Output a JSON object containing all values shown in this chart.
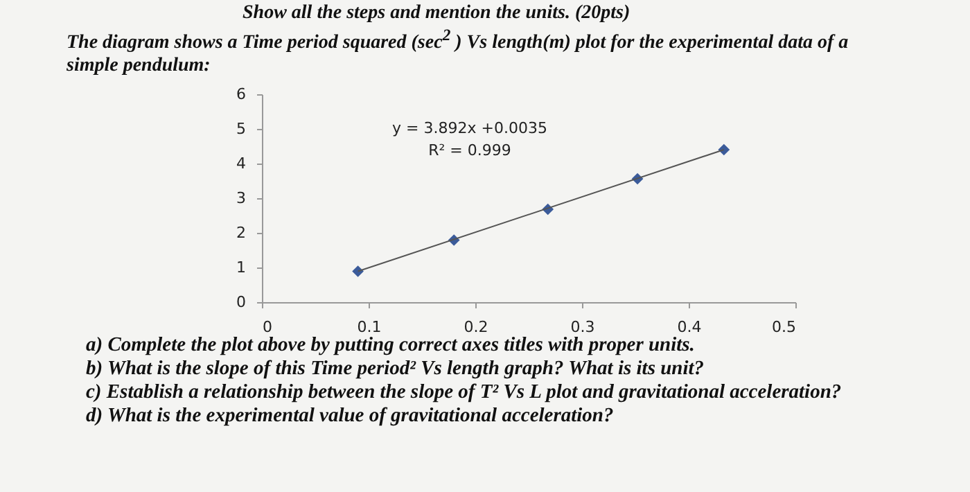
{
  "chart_data": {
    "type": "scatter",
    "title": "The diagram shows a Time period squared (sec$^{2}$ ) Vs length(m) plot for the experimental data of a simple pendulum:",
    "annotations": [
      "Show all the steps and mention the units.      (20pts)",
      "y = 3.892x +0.0035",
      "R² = 0.999",
      "a)  Complete the plot above by putting correct axes titles with proper units.",
      "b)  What is the slope of this Time period² Vs length graph?  What is its unit?",
      "c)  Establish a relationship between the slope of T² Vs L plot and gravitational acceleration?",
      "d)  What is the experimental value of gravitational acceleration?"
    ],
    "series": [
      {
        "color": "#3b5b9a",
        "marker": "diamond",
        "x": [
          0.09,
          0.18,
          0.268,
          0.352,
          0.433
        ],
        "values": [
          0.89,
          1.79,
          2.68,
          3.56,
          4.4
        ]
      },
      {
        "type": "line",
        "color": "#555555",
        "x": [
          0.09,
          0.433
        ],
        "values": [
          0.89,
          4.4
        ]
      }
    ],
    "xlim": [
      0,
      0.5
    ],
    "xticks": [
      0,
      0.1,
      0.2,
      0.3,
      0.4,
      0.5
    ],
    "ylim": [
      0,
      6
    ],
    "yticks": [
      0,
      1,
      2,
      3,
      4,
      5,
      6
    ],
    "grid": false
  }
}
